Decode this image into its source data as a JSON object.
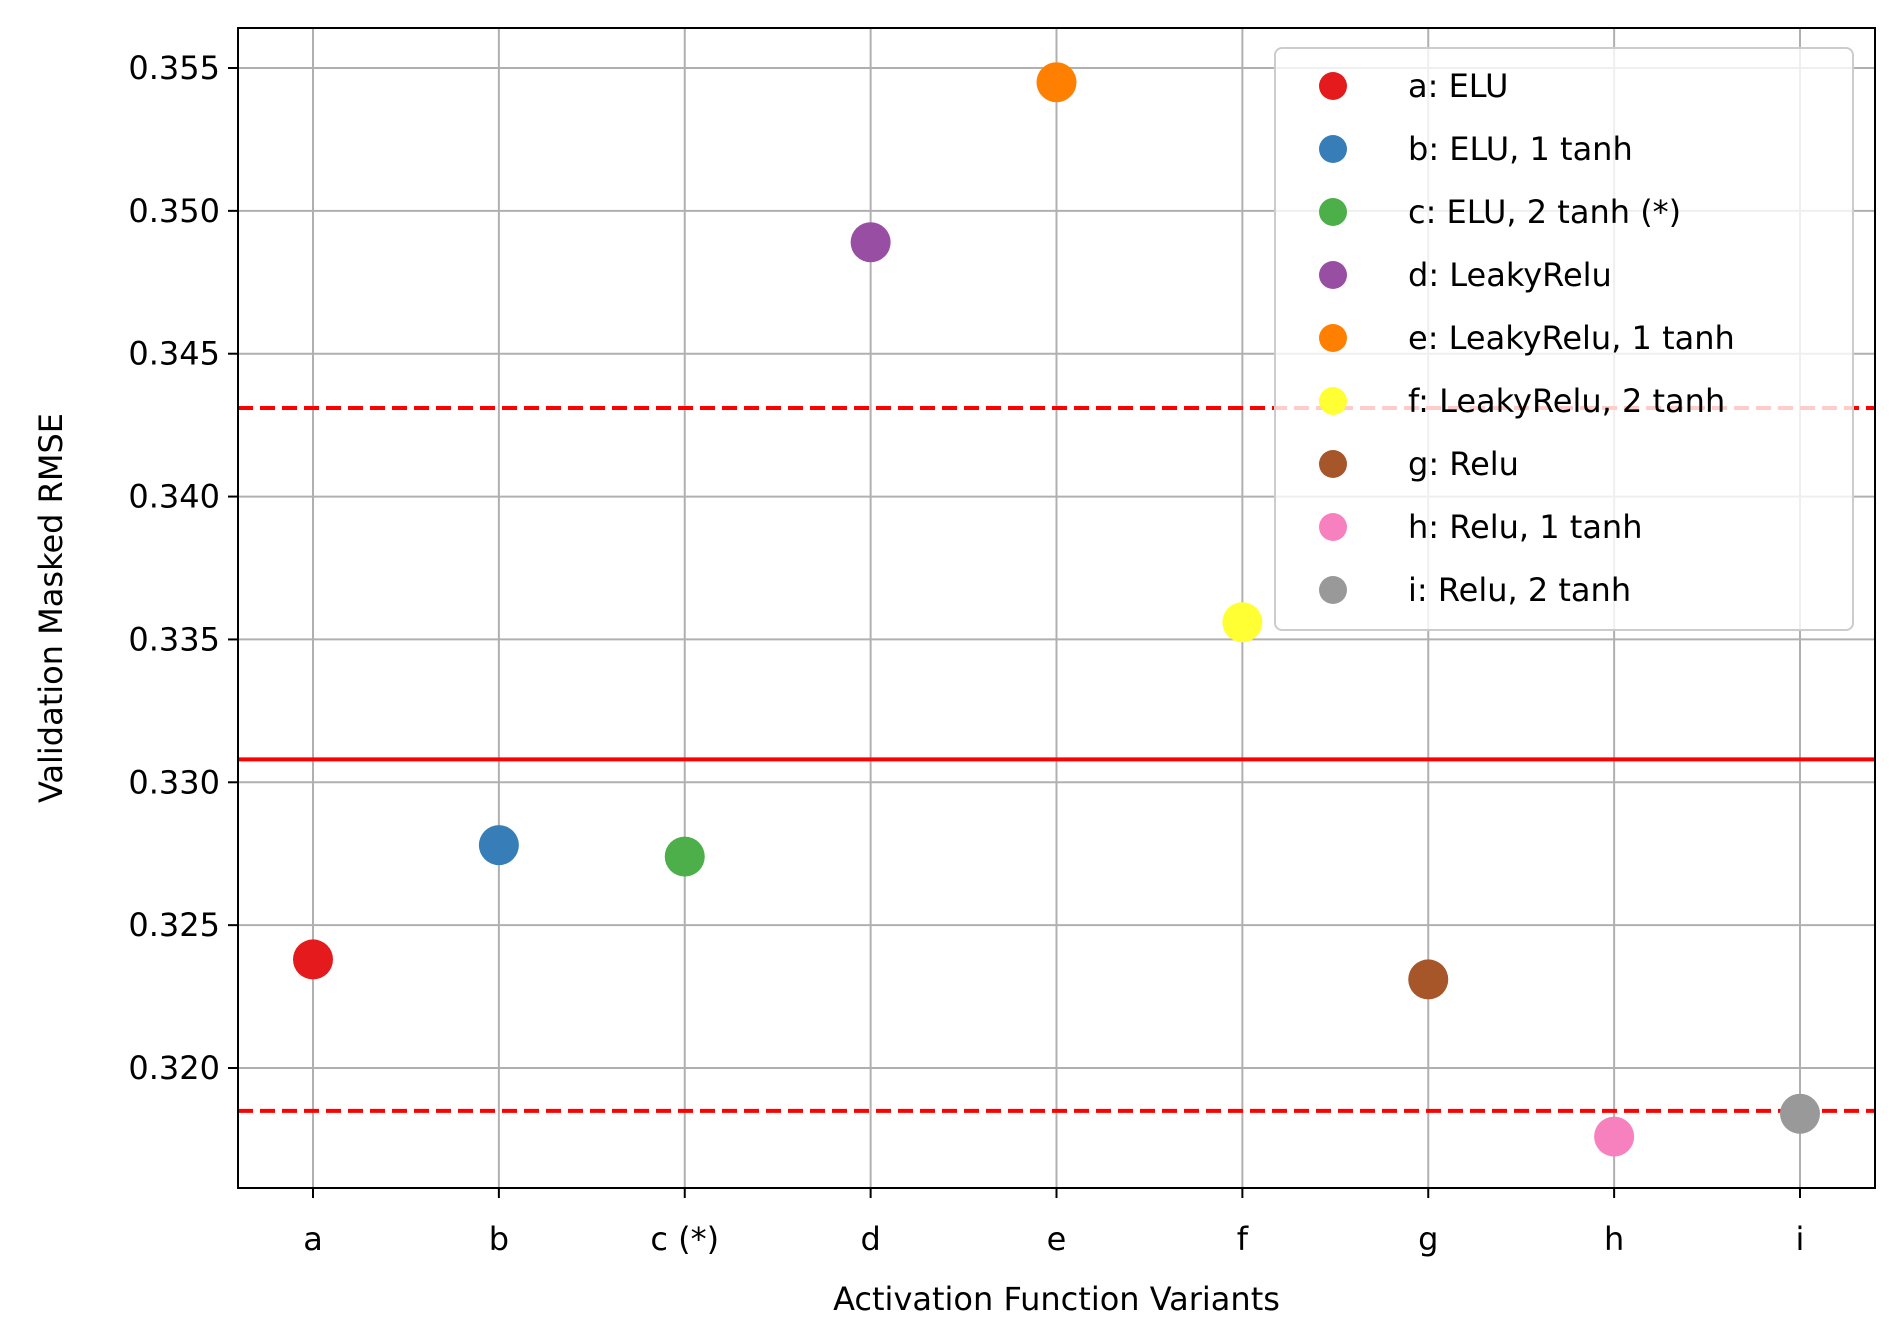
{
  "chart_data": {
    "type": "scatter",
    "title": "",
    "xlabel": "Activation Function Variants",
    "ylabel": "Validation Masked RMSE",
    "categories": [
      "a",
      "b",
      "c (*)",
      "d",
      "e",
      "f",
      "g",
      "h",
      "i"
    ],
    "ylim": [
      0.3158,
      0.3564
    ],
    "yticks": [
      "0.320",
      "0.325",
      "0.330",
      "0.335",
      "0.340",
      "0.345",
      "0.350",
      "0.355"
    ],
    "grid": true,
    "legend_position": "top-right",
    "series": [
      {
        "name": "a: ELU",
        "category": "a",
        "value": 0.3238,
        "color": "#e41a1c"
      },
      {
        "name": "b: ELU, 1 tanh",
        "category": "b",
        "value": 0.3278,
        "color": "#377eb8"
      },
      {
        "name": "c: ELU, 2 tanh (*)",
        "category": "c (*)",
        "value": 0.3274,
        "color": "#4daf4a"
      },
      {
        "name": "d: LeakyRelu",
        "category": "d",
        "value": 0.3489,
        "color": "#984ea3"
      },
      {
        "name": "e: LeakyRelu, 1 tanh",
        "category": "e",
        "value": 0.3545,
        "color": "#ff7f00"
      },
      {
        "name": "f: LeakyRelu, 2 tanh",
        "category": "f",
        "value": 0.3356,
        "color": "#ffff33"
      },
      {
        "name": "g: Relu",
        "category": "g",
        "value": 0.3231,
        "color": "#a65628"
      },
      {
        "name": "h: Relu, 1 tanh",
        "category": "h",
        "value": 0.3176,
        "color": "#f781bf"
      },
      {
        "name": "i: Relu, 2 tanh",
        "category": "i",
        "value": 0.3184,
        "color": "#999999"
      }
    ],
    "reference_lines": [
      {
        "value": 0.3308,
        "style": "solid",
        "color": "#ff0000"
      },
      {
        "value": 0.3431,
        "style": "dashed",
        "color": "#ff0000"
      },
      {
        "value": 0.3185,
        "style": "dashed",
        "color": "#ff0000"
      }
    ]
  }
}
